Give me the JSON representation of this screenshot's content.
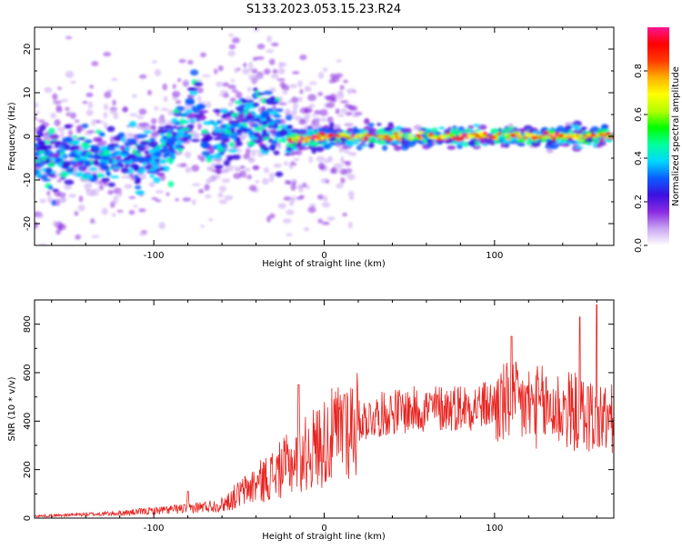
{
  "title": "S133.2023.053.15.23.R24",
  "chart_data": [
    {
      "type": "heatmap",
      "xlabel": "Height of straight line (km)",
      "ylabel": "Frequency (Hz)",
      "xlim": [
        -170,
        170
      ],
      "ylim": [
        -25,
        25
      ],
      "xticks": [
        -100,
        0,
        100
      ],
      "yticks": [
        -20,
        -10,
        0,
        10,
        20
      ],
      "colorbar": {
        "label": "Normalized spectral amplitude",
        "range": [
          0,
          1
        ],
        "ticks": [
          0.0,
          0.2,
          0.4,
          0.6,
          0.8
        ],
        "tick_labels": [
          "0.0",
          "0.2",
          "0.4",
          "0.6",
          "0.8"
        ],
        "colors": [
          "#ffffff",
          "#c9a6f2",
          "#8a2be2",
          "#3b10e0",
          "#0a5cff",
          "#00d6ff",
          "#00ff9f",
          "#00ff00",
          "#b4ff00",
          "#ffff00",
          "#ffb000",
          "#ff3a00",
          "#ff0000",
          "#ff1493"
        ]
      },
      "ridge": [
        {
          "x": -170,
          "y": -4
        },
        {
          "x": -150,
          "y": -5
        },
        {
          "x": -130,
          "y": -5
        },
        {
          "x": -110,
          "y": -5
        },
        {
          "x": -95,
          "y": -4
        },
        {
          "x": -85,
          "y": 0
        },
        {
          "x": -75,
          "y": 8
        },
        {
          "x": -68,
          "y": -3
        },
        {
          "x": -55,
          "y": 0
        },
        {
          "x": -45,
          "y": 5
        },
        {
          "x": -30,
          "y": 2
        },
        {
          "x": -20,
          "y": -1
        },
        {
          "x": 0,
          "y": 0
        },
        {
          "x": 170,
          "y": 0
        }
      ]
    },
    {
      "type": "line",
      "xlabel": "Height of straight line (km)",
      "ylabel": "SNR (10 * v/v)",
      "xlim": [
        -170,
        170
      ],
      "ylim": [
        0,
        900
      ],
      "xticks": [
        -100,
        0,
        100
      ],
      "yticks": [
        0,
        200,
        400,
        600,
        800
      ],
      "color": "#e8231f",
      "trend": [
        {
          "x": -170,
          "y": 8
        },
        {
          "x": -120,
          "y": 20
        },
        {
          "x": -80,
          "y": 40
        },
        {
          "x": -60,
          "y": 55
        },
        {
          "x": -45,
          "y": 120
        },
        {
          "x": -30,
          "y": 180
        },
        {
          "x": -10,
          "y": 270
        },
        {
          "x": 10,
          "y": 360
        },
        {
          "x": 20,
          "y": 400
        },
        {
          "x": 40,
          "y": 440
        },
        {
          "x": 80,
          "y": 460
        },
        {
          "x": 110,
          "y": 470
        },
        {
          "x": 140,
          "y": 450
        },
        {
          "x": 170,
          "y": 400
        }
      ],
      "peaks": [
        {
          "x": -80,
          "y": 110
        },
        {
          "x": -15,
          "y": 550
        },
        {
          "x": 12,
          "y": 510
        },
        {
          "x": 160,
          "y": 880
        },
        {
          "x": 150,
          "y": 830
        },
        {
          "x": 110,
          "y": 750
        }
      ]
    }
  ]
}
